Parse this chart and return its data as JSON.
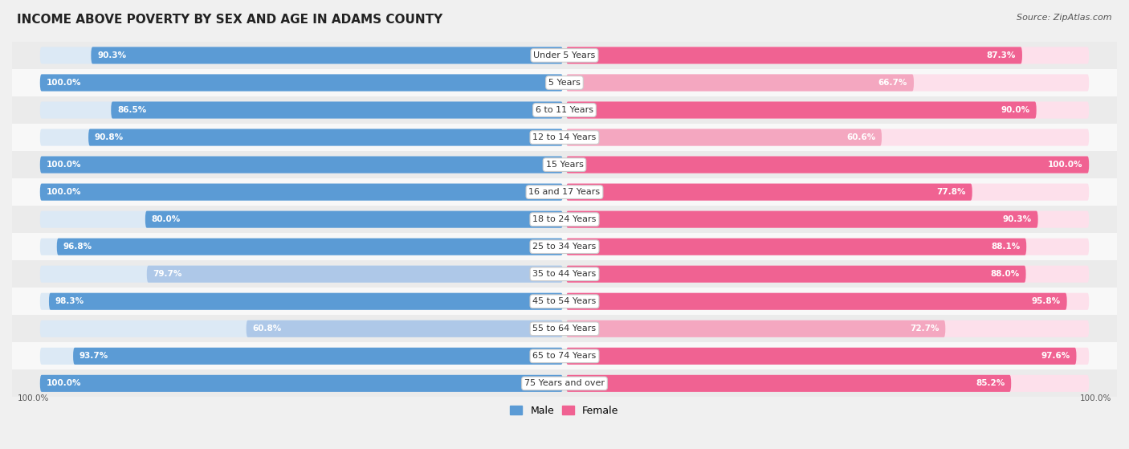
{
  "title": "INCOME ABOVE POVERTY BY SEX AND AGE IN ADAMS COUNTY",
  "source": "Source: ZipAtlas.com",
  "categories": [
    "Under 5 Years",
    "5 Years",
    "6 to 11 Years",
    "12 to 14 Years",
    "15 Years",
    "16 and 17 Years",
    "18 to 24 Years",
    "25 to 34 Years",
    "35 to 44 Years",
    "45 to 54 Years",
    "55 to 64 Years",
    "65 to 74 Years",
    "75 Years and over"
  ],
  "male_values": [
    90.3,
    100.0,
    86.5,
    90.8,
    100.0,
    100.0,
    80.0,
    96.8,
    79.7,
    98.3,
    60.8,
    93.7,
    100.0
  ],
  "female_values": [
    87.3,
    66.7,
    90.0,
    60.6,
    100.0,
    77.8,
    90.3,
    88.1,
    88.0,
    95.8,
    72.7,
    97.6,
    85.2
  ],
  "male_color_dark": "#5b9bd5",
  "male_color_light": "#aec8e8",
  "female_color_dark": "#f06292",
  "female_color_light": "#f4a7c0",
  "male_bg": "#dce9f5",
  "female_bg": "#fde0eb",
  "row_bg_odd": "#ebebeb",
  "row_bg_even": "#f8f8f8",
  "title_fontsize": 11,
  "label_fontsize": 8,
  "value_fontsize": 7.5,
  "legend_fontsize": 9,
  "max_value": 100.0,
  "source_fontsize": 8
}
